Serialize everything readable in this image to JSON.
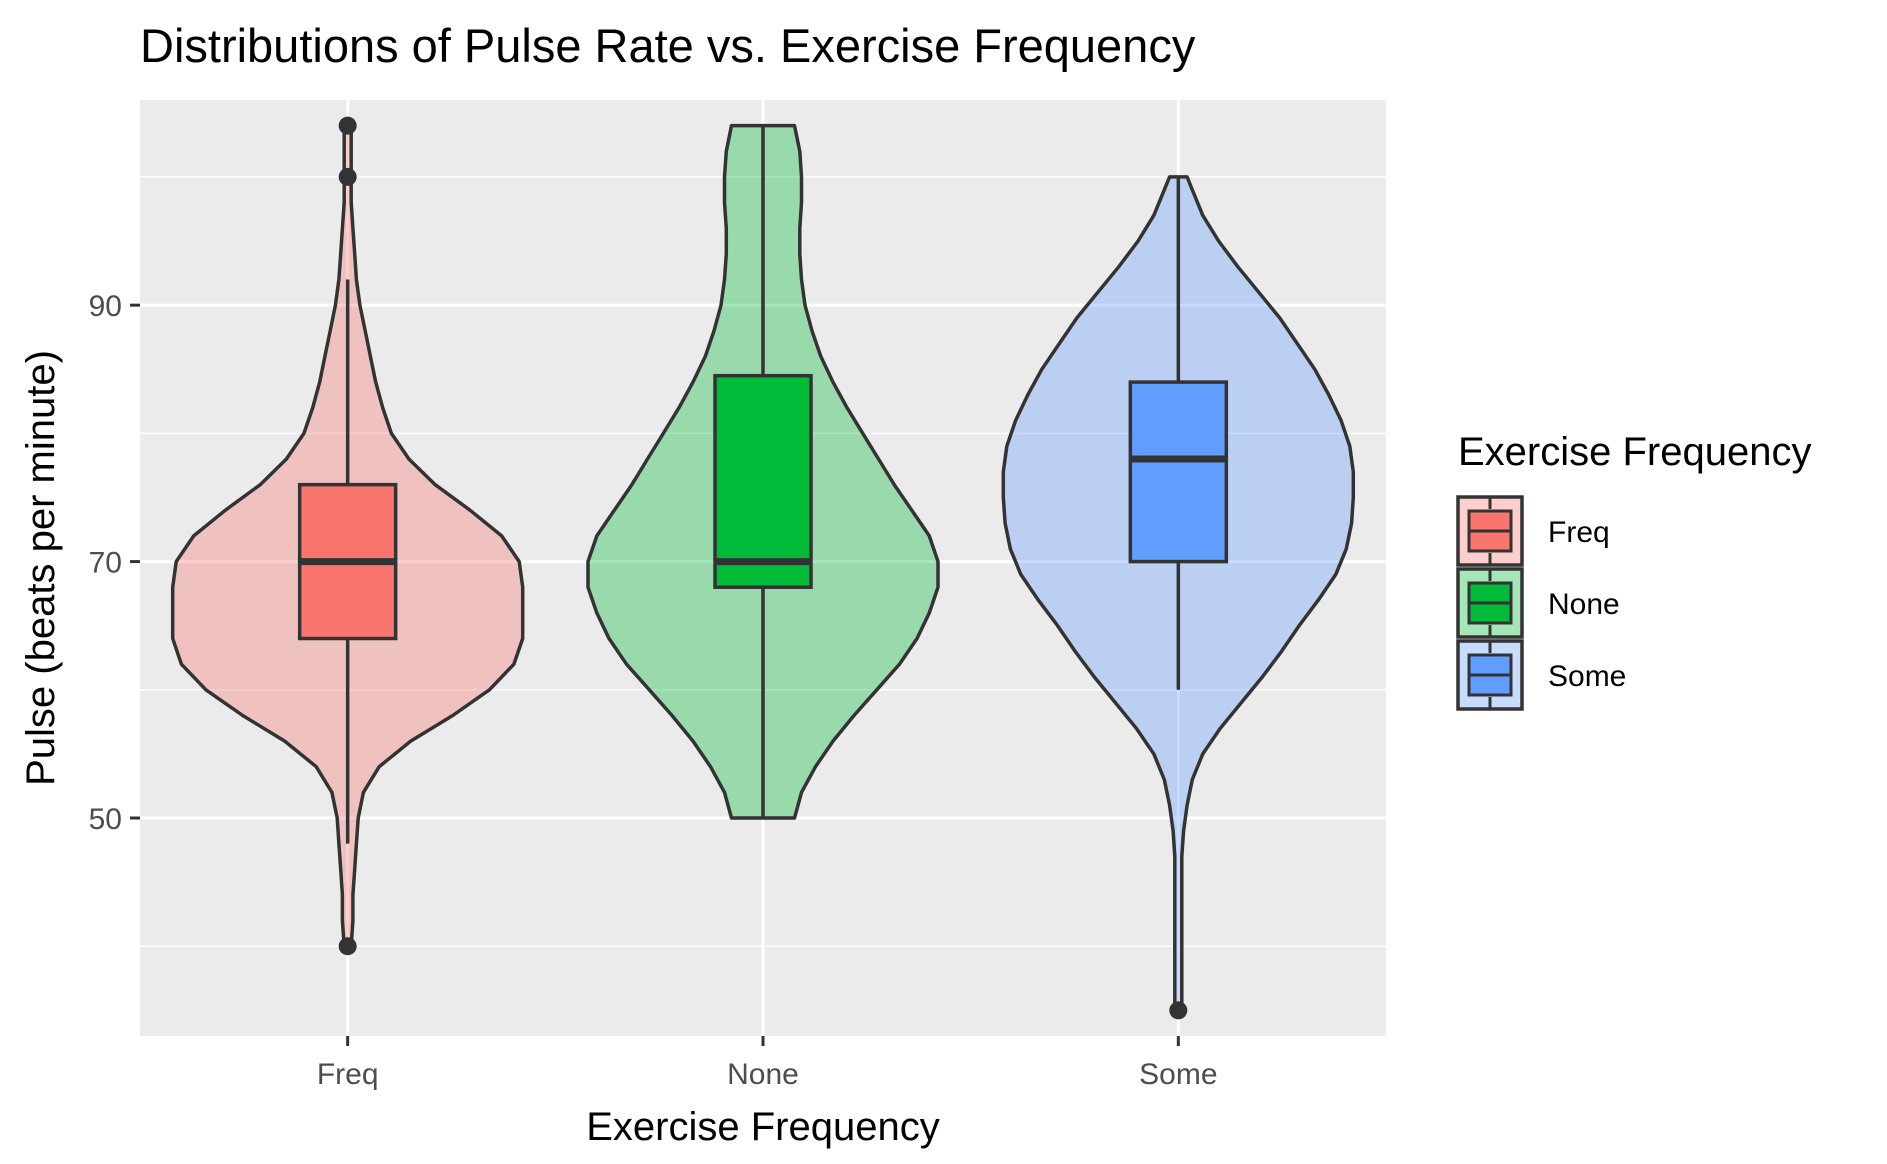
{
  "chart_data": {
    "type": "violin",
    "title": "Distributions of Pulse Rate vs. Exercise Frequency",
    "xlabel": "Exercise Frequency",
    "ylabel": "Pulse (beats per minute)",
    "ylim": [
      33,
      106
    ],
    "y_ticks": [
      50,
      70,
      90
    ],
    "y_minor_ticks": [
      40,
      60,
      80,
      100
    ],
    "grid": true,
    "legend": {
      "title": "Exercise Frequency",
      "position": "right"
    },
    "categories": [
      "Freq",
      "None",
      "Some"
    ],
    "groups": [
      {
        "name": "Freq",
        "color": "#F8766D",
        "box": {
          "min": 48,
          "q1": 64,
          "median": 70,
          "q3": 76,
          "max": 92
        },
        "outliers": [
          40,
          100,
          104
        ],
        "density": [
          [
            40,
            0.02
          ],
          [
            42,
            0.03
          ],
          [
            44,
            0.03
          ],
          [
            46,
            0.04
          ],
          [
            48,
            0.05
          ],
          [
            50,
            0.06
          ],
          [
            52,
            0.09
          ],
          [
            54,
            0.18
          ],
          [
            56,
            0.36
          ],
          [
            58,
            0.6
          ],
          [
            60,
            0.81
          ],
          [
            62,
            0.95
          ],
          [
            64,
            1.0
          ],
          [
            66,
            1.0
          ],
          [
            68,
            1.0
          ],
          [
            70,
            0.98
          ],
          [
            72,
            0.88
          ],
          [
            74,
            0.7
          ],
          [
            76,
            0.5
          ],
          [
            78,
            0.35
          ],
          [
            80,
            0.25
          ],
          [
            82,
            0.2
          ],
          [
            84,
            0.16
          ],
          [
            86,
            0.13
          ],
          [
            88,
            0.1
          ],
          [
            90,
            0.07
          ],
          [
            92,
            0.05
          ],
          [
            94,
            0.04
          ],
          [
            96,
            0.03
          ],
          [
            98,
            0.02
          ],
          [
            100,
            0.02
          ],
          [
            102,
            0.02
          ],
          [
            104,
            0.02
          ]
        ]
      },
      {
        "name": "None",
        "color": "#00BA38",
        "box": {
          "min": 50,
          "q1": 68,
          "median": 70,
          "q3": 84.5,
          "max": 104
        },
        "outliers": [],
        "density": [
          [
            50,
            0.18
          ],
          [
            52,
            0.22
          ],
          [
            54,
            0.3
          ],
          [
            56,
            0.4
          ],
          [
            58,
            0.52
          ],
          [
            60,
            0.65
          ],
          [
            62,
            0.78
          ],
          [
            64,
            0.88
          ],
          [
            66,
            0.95
          ],
          [
            68,
            1.0
          ],
          [
            70,
            1.0
          ],
          [
            72,
            0.95
          ],
          [
            74,
            0.85
          ],
          [
            76,
            0.75
          ],
          [
            78,
            0.66
          ],
          [
            80,
            0.57
          ],
          [
            82,
            0.48
          ],
          [
            84,
            0.4
          ],
          [
            86,
            0.33
          ],
          [
            88,
            0.28
          ],
          [
            90,
            0.24
          ],
          [
            92,
            0.22
          ],
          [
            94,
            0.21
          ],
          [
            96,
            0.21
          ],
          [
            98,
            0.22
          ],
          [
            100,
            0.22
          ],
          [
            102,
            0.21
          ],
          [
            104,
            0.18
          ]
        ]
      },
      {
        "name": "Some",
        "color": "#619CFF",
        "box": {
          "min": 60,
          "q1": 70,
          "median": 78,
          "q3": 84,
          "max": 100
        },
        "outliers": [
          35
        ],
        "density": [
          [
            35,
            0.02
          ],
          [
            38,
            0.02
          ],
          [
            41,
            0.02
          ],
          [
            44,
            0.02
          ],
          [
            47,
            0.02
          ],
          [
            49,
            0.03
          ],
          [
            51,
            0.05
          ],
          [
            53,
            0.08
          ],
          [
            55,
            0.14
          ],
          [
            57,
            0.24
          ],
          [
            59,
            0.36
          ],
          [
            61,
            0.48
          ],
          [
            63,
            0.59
          ],
          [
            65,
            0.69
          ],
          [
            67,
            0.8
          ],
          [
            69,
            0.9
          ],
          [
            71,
            0.96
          ],
          [
            73,
            0.99
          ],
          [
            75,
            1.0
          ],
          [
            77,
            1.0
          ],
          [
            79,
            0.98
          ],
          [
            81,
            0.93
          ],
          [
            83,
            0.86
          ],
          [
            85,
            0.78
          ],
          [
            87,
            0.68
          ],
          [
            89,
            0.58
          ],
          [
            91,
            0.46
          ],
          [
            93,
            0.34
          ],
          [
            95,
            0.23
          ],
          [
            97,
            0.14
          ],
          [
            99,
            0.08
          ],
          [
            100,
            0.05
          ]
        ]
      }
    ]
  }
}
